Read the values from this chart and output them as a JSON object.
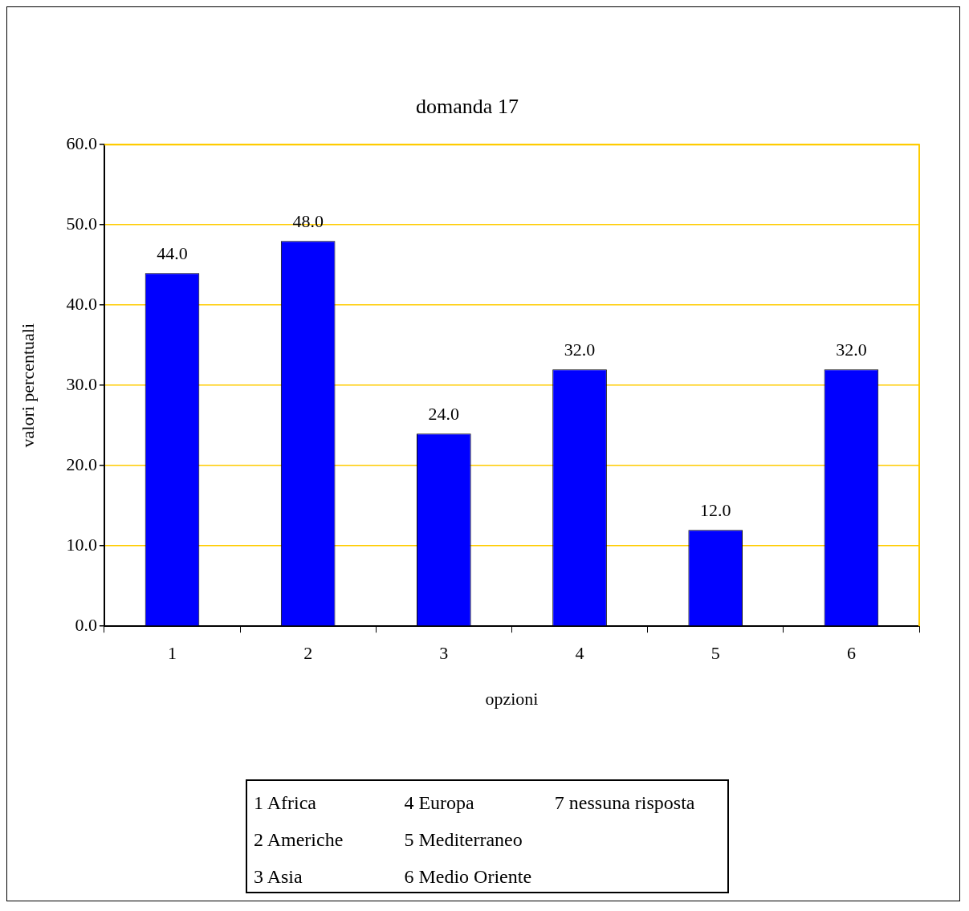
{
  "chart_data": {
    "type": "bar",
    "title": "domanda 17",
    "xlabel": "opzioni",
    "ylabel": "valori percentuali",
    "categories": [
      "1",
      "2",
      "3",
      "4",
      "5",
      "6"
    ],
    "values": [
      44,
      48,
      24,
      32,
      12,
      32
    ],
    "color": "#0000ff",
    "value_labels": [
      "44.0",
      "48.0",
      "24.0",
      "32.0",
      "12.0",
      "32.0"
    ],
    "ylim": [
      0,
      60
    ],
    "yticks": [
      {
        "value": 0,
        "label": "0.0"
      },
      {
        "value": 10,
        "label": "10.0"
      },
      {
        "value": 20,
        "label": "20.0"
      },
      {
        "value": 30,
        "label": "30.0"
      },
      {
        "value": 40,
        "label": "40.0"
      },
      {
        "value": 50,
        "label": "50.0"
      },
      {
        "value": 60,
        "label": "60.0"
      }
    ],
    "grid": "y",
    "legend": false,
    "annotations": [
      "1 Africa",
      "2 Americhe",
      "3 Asia",
      "4 Europa",
      "5 Mediterraneo",
      "6 Medio Oriente",
      "7 nessuna risposta"
    ]
  }
}
